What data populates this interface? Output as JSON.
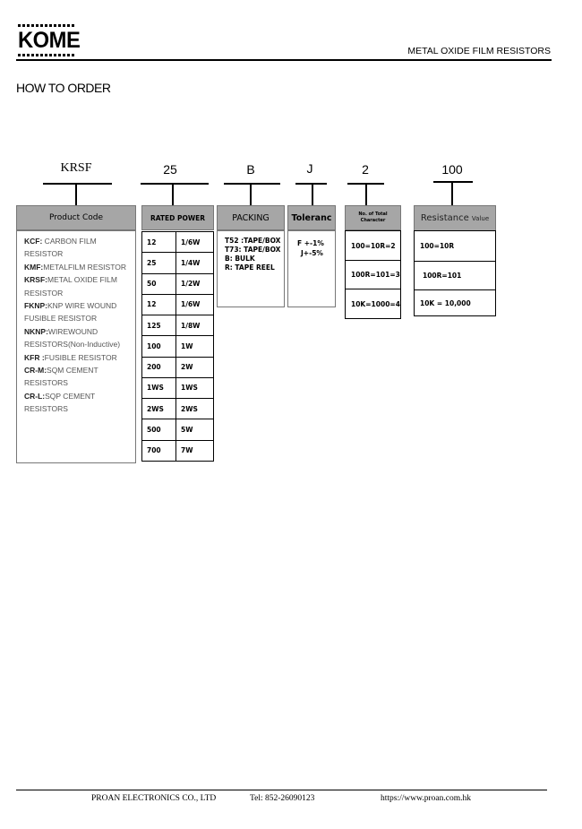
{
  "header": {
    "logo": "KOME",
    "doc_title": "METAL OXIDE FILM RESISTORS"
  },
  "section_title": "HOW TO ORDER",
  "example_codes": [
    "KRSF",
    "25",
    "B",
    "J",
    "2",
    "100"
  ],
  "product_code": {
    "title": "Product Code",
    "items": [
      {
        "code": "KCF:",
        "desc": " CARBON FILM RESISTOR"
      },
      {
        "code": "KMF:",
        "desc": "METALFILM RESISTOR"
      },
      {
        "code": "KRSF:",
        "desc": "METAL OXIDE FILM RESISTOR"
      },
      {
        "code": "FKNP:",
        "desc": "KNP WIRE WOUND FUSIBLE RESISTOR"
      },
      {
        "code": "NKNP:",
        "desc": "WIREWOUND RESISTORS(Non-Inductive)"
      },
      {
        "code": "KFR :",
        "desc": "FUSIBLE RESISTOR"
      },
      {
        "code": "CR-M:",
        "desc": "SQM CEMENT RESISTORS"
      },
      {
        "code": "CR-L:",
        "desc": "SQP CEMENT RESISTORS"
      }
    ]
  },
  "rated_power": {
    "title": "RATED POWER",
    "rows": [
      [
        "12",
        "1/6W"
      ],
      [
        "25",
        "1/4W"
      ],
      [
        "50",
        "1/2W"
      ],
      [
        "12",
        "1/6W"
      ],
      [
        "125",
        "1/8W"
      ],
      [
        "100",
        "1W"
      ],
      [
        "200",
        "2W"
      ],
      [
        "1WS",
        "1WS"
      ],
      [
        "2WS",
        "2WS"
      ],
      [
        "500",
        "5W"
      ],
      [
        "700",
        "7W"
      ]
    ]
  },
  "packing": {
    "title": "PACKING",
    "items": [
      "T52 :TAPE/BOX",
      "T73: TAPE/BOX",
      "B:  BULK",
      "R: TAPE REEL"
    ]
  },
  "tolerance": {
    "title": "Toleranc",
    "items": [
      "F +-1%",
      "J+-5%"
    ]
  },
  "digits": {
    "title_line1": "No. of Total",
    "title_line2": "Character",
    "rows": [
      "100=10R=2",
      "100R=101=3",
      "10K=1000=4"
    ]
  },
  "resistance": {
    "title": "Resistance",
    "title_suffix": "Value",
    "rows": [
      "100=10R",
      "100R=101",
      "10K = 10,000"
    ]
  },
  "footer": {
    "company": "PROAN ELECTRONICS CO., LTD",
    "tel": "Tel: 852-26090123",
    "url": "https://www.proan.com.hk"
  }
}
